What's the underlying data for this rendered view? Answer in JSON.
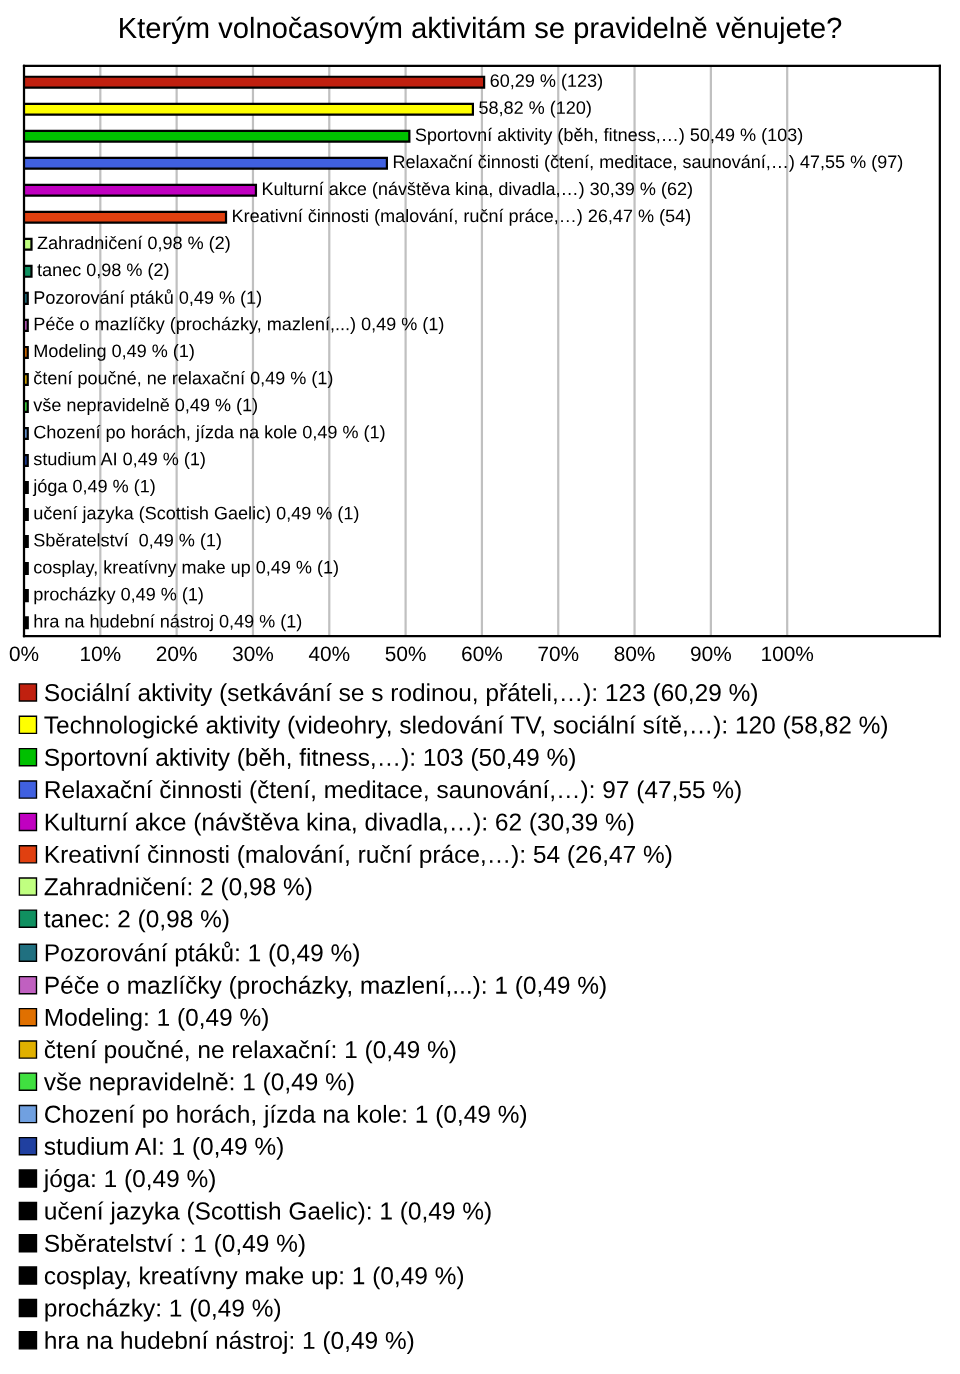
{
  "chart_data": {
    "type": "bar",
    "orientation": "horizontal",
    "title": "Kterým volnočasovým aktivitám se pravidelně věnujete?",
    "categories": [
      null,
      null,
      null,
      null,
      null,
      null,
      null,
      null,
      null,
      null,
      null,
      null,
      null,
      null,
      null,
      null,
      null,
      null,
      null,
      null,
      null
    ],
    "series": [
      {
        "name": "Sociální aktivity (setkávání se s rodinou, přáteli,…): 123 (60,29 %)",
        "color": "#c0200f",
        "values": [
          60.29,
          null,
          null,
          null,
          null,
          null,
          null,
          null,
          null,
          null,
          null,
          null,
          null,
          null,
          null,
          null,
          null,
          null,
          null,
          null,
          null
        ],
        "value_labels": [
          "60,29 % (123)",
          null,
          null,
          null,
          null,
          null,
          null,
          null,
          null,
          null,
          null,
          null,
          null,
          null,
          null,
          null,
          null,
          null,
          null,
          null,
          null
        ]
      },
      {
        "name": "Technologické aktivity (videohry, sledování TV, sociální sítě,…): 120 (58,82 %)",
        "color": "#ffff00",
        "values": [
          null,
          58.82,
          null,
          null,
          null,
          null,
          null,
          null,
          null,
          null,
          null,
          null,
          null,
          null,
          null,
          null,
          null,
          null,
          null,
          null,
          null
        ],
        "value_labels": [
          null,
          "58,82 % (120)",
          null,
          null,
          null,
          null,
          null,
          null,
          null,
          null,
          null,
          null,
          null,
          null,
          null,
          null,
          null,
          null,
          null,
          null,
          null
        ]
      },
      {
        "name": "Sportovní aktivity (běh, fitness,…): 103 (50,49 %)",
        "color": "#00c000",
        "values": [
          null,
          null,
          50.49,
          null,
          null,
          null,
          null,
          null,
          null,
          null,
          null,
          null,
          null,
          null,
          null,
          null,
          null,
          null,
          null,
          null,
          null
        ],
        "value_labels": [
          null,
          null,
          "Sportovní aktivity (běh, fitness,…) 50,49 % (103)",
          null,
          null,
          null,
          null,
          null,
          null,
          null,
          null,
          null,
          null,
          null,
          null,
          null,
          null,
          null,
          null,
          null,
          null
        ]
      },
      {
        "name": "Relaxační činnosti (čtení, meditace, saunování,…): 97 (47,55 %)",
        "color": "#4060e0",
        "values": [
          null,
          null,
          null,
          47.55,
          null,
          null,
          null,
          null,
          null,
          null,
          null,
          null,
          null,
          null,
          null,
          null,
          null,
          null,
          null,
          null,
          null
        ],
        "value_labels": [
          null,
          null,
          null,
          "Relaxační činnosti (čtení, meditace, saunování,…) 47,55 % (97)",
          null,
          null,
          null,
          null,
          null,
          null,
          null,
          null,
          null,
          null,
          null,
          null,
          null,
          null,
          null,
          null,
          null
        ]
      },
      {
        "name": "Kulturní akce (návštěva kina, divadla,…): 62 (30,39 %)",
        "color": "#c000c0",
        "values": [
          null,
          null,
          null,
          null,
          30.39,
          null,
          null,
          null,
          null,
          null,
          null,
          null,
          null,
          null,
          null,
          null,
          null,
          null,
          null,
          null,
          null
        ],
        "value_labels": [
          null,
          null,
          null,
          null,
          "Kulturní akce (návštěva kina, divadla,…) 30,39 % (62)",
          null,
          null,
          null,
          null,
          null,
          null,
          null,
          null,
          null,
          null,
          null,
          null,
          null,
          null,
          null,
          null
        ]
      },
      {
        "name": "Kreativní činnosti (malování, ruční práce,…): 54 (26,47 %)",
        "color": "#e04010",
        "values": [
          null,
          null,
          null,
          null,
          null,
          26.47,
          null,
          null,
          null,
          null,
          null,
          null,
          null,
          null,
          null,
          null,
          null,
          null,
          null,
          null,
          null
        ],
        "value_labels": [
          null,
          null,
          null,
          null,
          null,
          "Kreativní činnosti (malování, ruční práce,…) 26,47 % (54)",
          null,
          null,
          null,
          null,
          null,
          null,
          null,
          null,
          null,
          null,
          null,
          null,
          null,
          null,
          null
        ]
      },
      {
        "name": "Zahradničení: 2 (0,98 %)",
        "color": "#c0ff80",
        "values": [
          null,
          null,
          null,
          null,
          null,
          null,
          0.98,
          null,
          null,
          null,
          null,
          null,
          null,
          null,
          null,
          null,
          null,
          null,
          null,
          null,
          null
        ],
        "value_labels": [
          null,
          null,
          null,
          null,
          null,
          null,
          "Zahradničení 0,98 % (2)",
          null,
          null,
          null,
          null,
          null,
          null,
          null,
          null,
          null,
          null,
          null,
          null,
          null,
          null
        ]
      },
      {
        "name": "tanec: 2 (0,98 %)",
        "color": "#109060",
        "values": [
          null,
          null,
          null,
          null,
          null,
          null,
          null,
          0.98,
          null,
          null,
          null,
          null,
          null,
          null,
          null,
          null,
          null,
          null,
          null,
          null,
          null
        ],
        "value_labels": [
          null,
          null,
          null,
          null,
          null,
          null,
          null,
          "tanec 0,98 % (2)",
          null,
          null,
          null,
          null,
          null,
          null,
          null,
          null,
          null,
          null,
          null,
          null,
          null
        ]
      },
      {
        "name": "Pozorování ptáků: 1 (0,49 %)",
        "color": "#207080",
        "values": [
          null,
          null,
          null,
          null,
          null,
          null,
          null,
          null,
          0.49,
          null,
          null,
          null,
          null,
          null,
          null,
          null,
          null,
          null,
          null,
          null,
          null
        ],
        "value_labels": [
          null,
          null,
          null,
          null,
          null,
          null,
          null,
          null,
          "Pozorování ptáků 0,49 % (1)",
          null,
          null,
          null,
          null,
          null,
          null,
          null,
          null,
          null,
          null,
          null,
          null
        ]
      },
      {
        "name": "Péče o mazlíčky (procházky, mazlení,...): 1 (0,49 %)",
        "color": "#c060c0",
        "values": [
          null,
          null,
          null,
          null,
          null,
          null,
          null,
          null,
          null,
          0.49,
          null,
          null,
          null,
          null,
          null,
          null,
          null,
          null,
          null,
          null,
          null
        ],
        "value_labels": [
          null,
          null,
          null,
          null,
          null,
          null,
          null,
          null,
          null,
          "Péče o mazlíčky (procházky, mazlení,...) 0,49 % (1)",
          null,
          null,
          null,
          null,
          null,
          null,
          null,
          null,
          null,
          null,
          null
        ]
      },
      {
        "name": "Modeling: 1 (0,49 %)",
        "color": "#e07000",
        "values": [
          null,
          null,
          null,
          null,
          null,
          null,
          null,
          null,
          null,
          null,
          0.49,
          null,
          null,
          null,
          null,
          null,
          null,
          null,
          null,
          null,
          null
        ],
        "value_labels": [
          null,
          null,
          null,
          null,
          null,
          null,
          null,
          null,
          null,
          null,
          "Modeling 0,49 % (1)",
          null,
          null,
          null,
          null,
          null,
          null,
          null,
          null,
          null,
          null
        ]
      },
      {
        "name": "čtení poučné, ne relaxační: 1 (0,49 %)",
        "color": "#e0b000",
        "values": [
          null,
          null,
          null,
          null,
          null,
          null,
          null,
          null,
          null,
          null,
          null,
          0.49,
          null,
          null,
          null,
          null,
          null,
          null,
          null,
          null,
          null
        ],
        "value_labels": [
          null,
          null,
          null,
          null,
          null,
          null,
          null,
          null,
          null,
          null,
          null,
          "čtení poučné, ne relaxační 0,49 % (1)",
          null,
          null,
          null,
          null,
          null,
          null,
          null,
          null,
          null
        ]
      },
      {
        "name": "vše nepravidelně: 1 (0,49 %)",
        "color": "#40e040",
        "values": [
          null,
          null,
          null,
          null,
          null,
          null,
          null,
          null,
          null,
          null,
          null,
          null,
          0.49,
          null,
          null,
          null,
          null,
          null,
          null,
          null,
          null
        ],
        "value_labels": [
          null,
          null,
          null,
          null,
          null,
          null,
          null,
          null,
          null,
          null,
          null,
          null,
          "vše nepravidelně 0,49 % (1)",
          null,
          null,
          null,
          null,
          null,
          null,
          null,
          null
        ]
      },
      {
        "name": "Chození po horách, jízda na kole: 1 (0,49 %)",
        "color": "#70a0e0",
        "values": [
          null,
          null,
          null,
          null,
          null,
          null,
          null,
          null,
          null,
          null,
          null,
          null,
          null,
          0.49,
          null,
          null,
          null,
          null,
          null,
          null,
          null
        ],
        "value_labels": [
          null,
          null,
          null,
          null,
          null,
          null,
          null,
          null,
          null,
          null,
          null,
          null,
          null,
          "Chození po horách, jízda na kole 0,49 % (1)",
          null,
          null,
          null,
          null,
          null,
          null,
          null
        ]
      },
      {
        "name": "studium AI: 1 (0,49 %)",
        "color": "#2040a0",
        "values": [
          null,
          null,
          null,
          null,
          null,
          null,
          null,
          null,
          null,
          null,
          null,
          null,
          null,
          null,
          0.49,
          null,
          null,
          null,
          null,
          null,
          null
        ],
        "value_labels": [
          null,
          null,
          null,
          null,
          null,
          null,
          null,
          null,
          null,
          null,
          null,
          null,
          null,
          null,
          "studium AI 0,49 % (1)",
          null,
          null,
          null,
          null,
          null,
          null
        ]
      },
      {
        "name": "jóga: 1 (0,49 %)",
        "color": "#000000",
        "values": [
          null,
          null,
          null,
          null,
          null,
          null,
          null,
          null,
          null,
          null,
          null,
          null,
          null,
          null,
          null,
          0.49,
          null,
          null,
          null,
          null,
          null
        ],
        "value_labels": [
          null,
          null,
          null,
          null,
          null,
          null,
          null,
          null,
          null,
          null,
          null,
          null,
          null,
          null,
          null,
          "jóga 0,49 % (1)",
          null,
          null,
          null,
          null,
          null
        ]
      },
      {
        "name": "učení jazyka (Scottish Gaelic): 1 (0,49 %)",
        "color": "#000000",
        "values": [
          null,
          null,
          null,
          null,
          null,
          null,
          null,
          null,
          null,
          null,
          null,
          null,
          null,
          null,
          null,
          null,
          0.49,
          null,
          null,
          null,
          null
        ],
        "value_labels": [
          null,
          null,
          null,
          null,
          null,
          null,
          null,
          null,
          null,
          null,
          null,
          null,
          null,
          null,
          null,
          null,
          "učení jazyka (Scottish Gaelic) 0,49 % (1)",
          null,
          null,
          null,
          null
        ]
      },
      {
        "name": "Sběratelství : 1 (0,49 %)",
        "color": "#000000",
        "values": [
          null,
          null,
          null,
          null,
          null,
          null,
          null,
          null,
          null,
          null,
          null,
          null,
          null,
          null,
          null,
          null,
          null,
          0.49,
          null,
          null,
          null
        ],
        "value_labels": [
          null,
          null,
          null,
          null,
          null,
          null,
          null,
          null,
          null,
          null,
          null,
          null,
          null,
          null,
          null,
          null,
          null,
          "Sběratelství  0,49 % (1)",
          null,
          null,
          null
        ]
      },
      {
        "name": "cosplay, kreatívny make up: 1 (0,49 %)",
        "color": "#000000",
        "values": [
          null,
          null,
          null,
          null,
          null,
          null,
          null,
          null,
          null,
          null,
          null,
          null,
          null,
          null,
          null,
          null,
          null,
          null,
          0.49,
          null,
          null
        ],
        "value_labels": [
          null,
          null,
          null,
          null,
          null,
          null,
          null,
          null,
          null,
          null,
          null,
          null,
          null,
          null,
          null,
          null,
          null,
          null,
          "cosplay, kreatívny make up 0,49 % (1)",
          null,
          null
        ]
      },
      {
        "name": "procházky: 1 (0,49 %)",
        "color": "#000000",
        "values": [
          null,
          null,
          null,
          null,
          null,
          null,
          null,
          null,
          null,
          null,
          null,
          null,
          null,
          null,
          null,
          null,
          null,
          null,
          null,
          0.49,
          null
        ],
        "value_labels": [
          null,
          null,
          null,
          null,
          null,
          null,
          null,
          null,
          null,
          null,
          null,
          null,
          null,
          null,
          null,
          null,
          null,
          null,
          null,
          "procházky 0,49 % (1)",
          null
        ]
      },
      {
        "name": "hra na hudební nástroj: 1 (0,49 %)",
        "color": "#000000",
        "values": [
          null,
          null,
          null,
          null,
          null,
          null,
          null,
          null,
          null,
          null,
          null,
          null,
          null,
          null,
          null,
          null,
          null,
          null,
          null,
          null,
          0.49
        ],
        "value_labels": [
          null,
          null,
          null,
          null,
          null,
          null,
          null,
          null,
          null,
          null,
          null,
          null,
          null,
          null,
          null,
          null,
          null,
          null,
          null,
          null,
          "hra na hudební nástroj 0,49 % (1)"
        ]
      }
    ],
    "xlim": [
      0,
      120
    ],
    "xticks": [
      {
        "value": 0,
        "label": "0%"
      },
      {
        "value": 10,
        "label": "10%"
      },
      {
        "value": 20,
        "label": "20%"
      },
      {
        "value": 30,
        "label": "30%"
      },
      {
        "value": 40,
        "label": "40%"
      },
      {
        "value": 50,
        "label": "50%"
      },
      {
        "value": 60,
        "label": "60%"
      },
      {
        "value": 70,
        "label": "70%"
      },
      {
        "value": 80,
        "label": "80%"
      },
      {
        "value": 90,
        "label": "90%"
      },
      {
        "value": 100,
        "label": "100%"
      }
    ],
    "grid": "x",
    "legend": "bottom"
  }
}
